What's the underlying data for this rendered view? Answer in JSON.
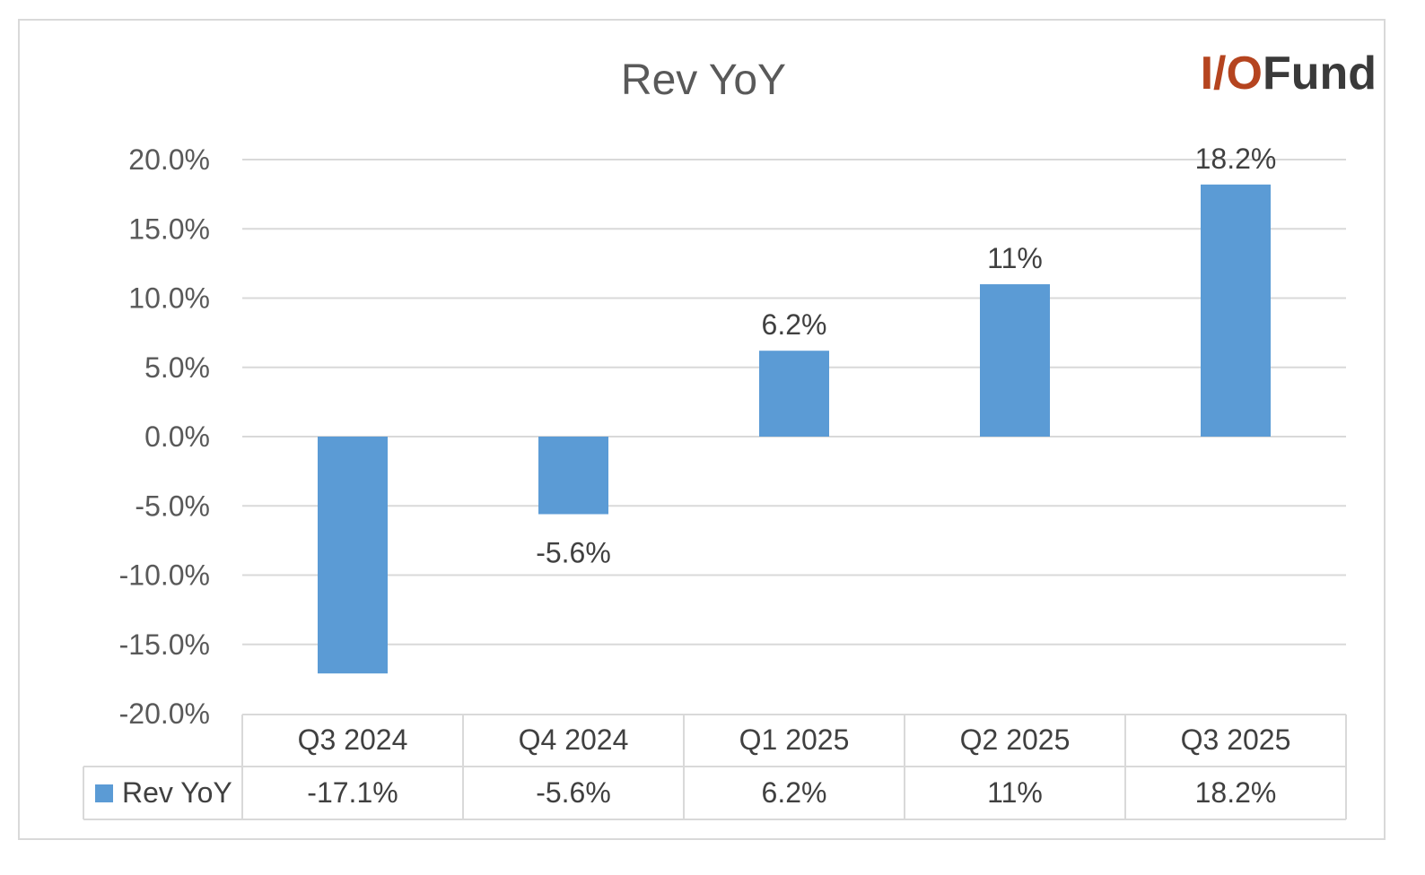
{
  "chart_data": {
    "type": "bar",
    "title": "Rev YoY",
    "categories": [
      "Q3 2024",
      "Q4 2024",
      "Q1 2025",
      "Q2 2025",
      "Q3 2025"
    ],
    "series": [
      {
        "name": "Rev YoY",
        "values": [
          -17.1,
          -5.6,
          6.2,
          11,
          18.2
        ],
        "color": "#5b9bd5"
      }
    ],
    "data_labels": [
      "-17.1%",
      "-5.6%",
      "6.2%",
      "11%",
      "18.2%"
    ],
    "bar_labels_shown": [
      false,
      true,
      true,
      true,
      true
    ],
    "yticks": [
      "20.0%",
      "15.0%",
      "10.0%",
      "5.0%",
      "0.0%",
      "-5.0%",
      "-10.0%",
      "-15.0%",
      "-20.0%"
    ],
    "ylim": [
      -20,
      20
    ],
    "grid": true,
    "legend": "data-table"
  },
  "logo": {
    "part1": "I/O",
    "part2": "Fund"
  }
}
